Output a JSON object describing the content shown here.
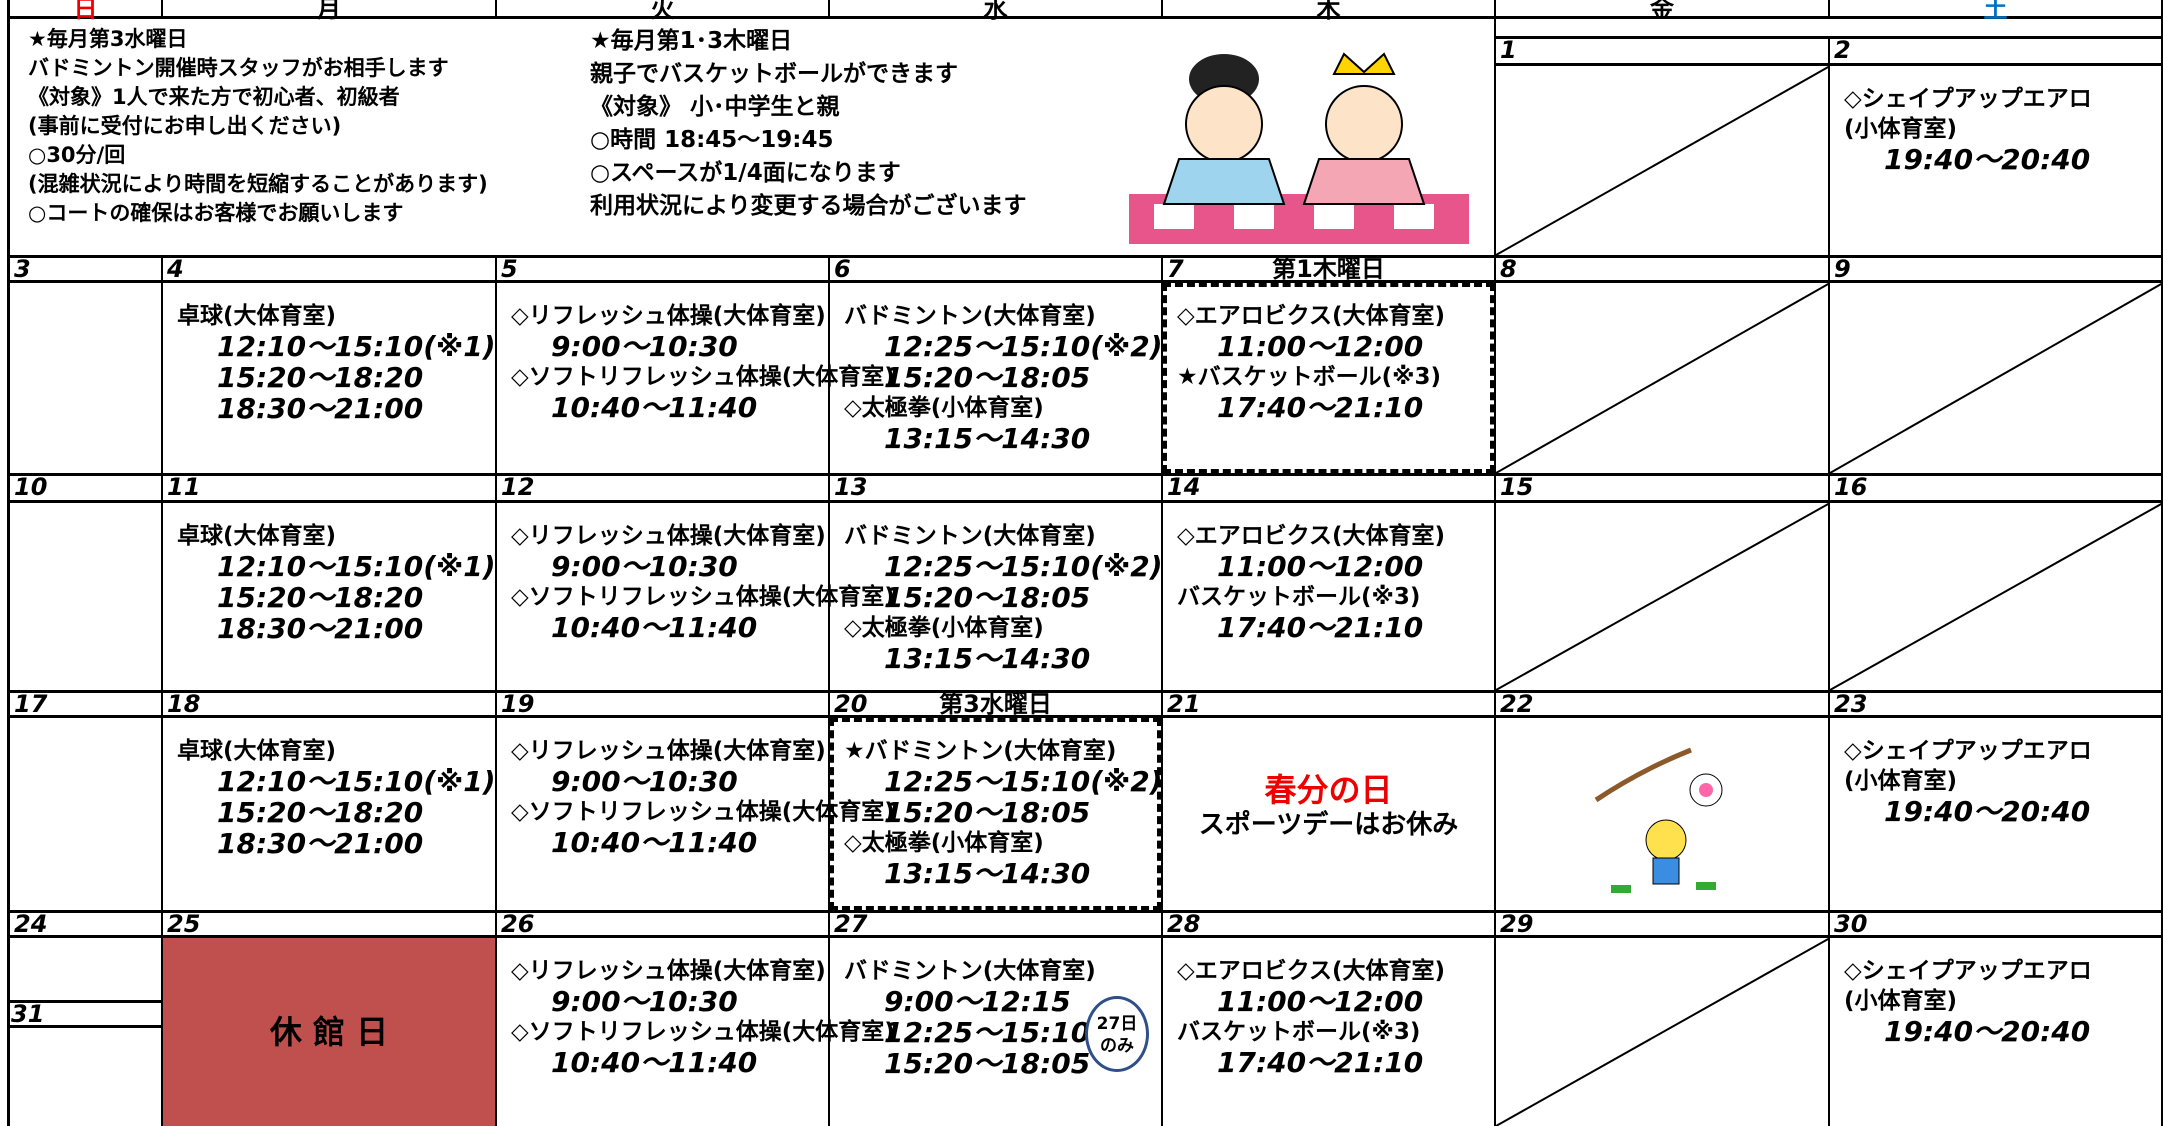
{
  "weekdays": [
    "日",
    "月",
    "火",
    "水",
    "木",
    "金",
    "土"
  ],
  "notes": {
    "left": [
      "★毎月第3水曜日",
      "バドミントン開催時スタッフがお相手します",
      "《対象》1人で来た方で初心者、初級者",
      "(事前に受付にお申し出ください)",
      "○30分/回",
      "(混雑状況により時間を短縮することがあります)",
      "○コートの確保はお客様でお願いします"
    ],
    "right": [
      "★毎月第1･3木曜日",
      "親子でバスケットボールができます",
      "《対象》 小･中学生と親",
      "○時間 18:45～19:45",
      "○スペースが1/4面になります",
      "利用状況により変更する場合がございます"
    ]
  },
  "weeks": [
    {
      "days": [
        {
          "date": "1",
          "crossed": true
        },
        {
          "date": "2",
          "lines": [
            "◇シェイプアップエアロ",
            "(小体育室)",
            "19:40～20:40"
          ]
        }
      ]
    },
    {
      "days": [
        {
          "date": "3"
        },
        {
          "date": "4",
          "lines": [
            "卓球(大体育室)",
            "12:10～15:10(※1)",
            "15:20～18:20",
            "18:30～21:00"
          ]
        },
        {
          "date": "5",
          "lines": [
            "◇リフレッシュ体操(大体育室)",
            "9:00～10:30",
            "◇ソフトリフレッシュ体操(大体育室)",
            "10:40～11:40"
          ]
        },
        {
          "date": "6",
          "lines": [
            "バドミントン(大体育室)",
            "12:25～15:10(※2)",
            "15:20～18:05",
            "◇太極拳(小体育室)",
            "13:15～14:30"
          ]
        },
        {
          "date": "7",
          "label": "第1木曜日",
          "lines": [
            "◇エアロビクス(大体育室)",
            "11:00～12:00",
            "★バスケットボール(※3)",
            "17:40～21:10"
          ]
        },
        {
          "date": "8",
          "crossed": true
        },
        {
          "date": "9",
          "crossed": true
        }
      ]
    },
    {
      "days": [
        {
          "date": "10"
        },
        {
          "date": "11",
          "lines": [
            "卓球(大体育室)",
            "12:10～15:10(※1)",
            "15:20～18:20",
            "18:30～21:00"
          ]
        },
        {
          "date": "12",
          "lines": [
            "◇リフレッシュ体操(大体育室)",
            "9:00～10:30",
            "◇ソフトリフレッシュ体操(大体育室)",
            "10:40～11:40"
          ]
        },
        {
          "date": "13",
          "lines": [
            "バドミントン(大体育室)",
            "12:25～15:10(※2)",
            "15:20～18:05",
            "◇太極拳(小体育室)",
            "13:15～14:30"
          ]
        },
        {
          "date": "14",
          "lines": [
            "◇エアロビクス(大体育室)",
            "11:00～12:00",
            "バスケットボール(※3)",
            "17:40～21:10"
          ]
        },
        {
          "date": "15",
          "crossed": true
        },
        {
          "date": "16",
          "crossed": true
        }
      ]
    },
    {
      "days": [
        {
          "date": "17"
        },
        {
          "date": "18",
          "lines": [
            "卓球(大体育室)",
            "12:10～15:10(※1)",
            "15:20～18:20",
            "18:30～21:00"
          ]
        },
        {
          "date": "19",
          "lines": [
            "◇リフレッシュ体操(大体育室)",
            "9:00～10:30",
            "◇ソフトリフレッシュ体操(大体育室)",
            "10:40～11:40"
          ]
        },
        {
          "date": "20",
          "label": "第3水曜日",
          "lines": [
            "★バドミントン(大体育室)",
            "12:25～15:10(※2)",
            "15:20～18:05",
            "◇太極拳(小体育室)",
            "13:15～14:30"
          ]
        },
        {
          "date": "21",
          "holiday": "春分の日",
          "lines": [
            "スポーツデーはお休み"
          ]
        },
        {
          "date": "22"
        },
        {
          "date": "23",
          "lines": [
            "◇シェイプアップエアロ",
            "(小体育室)",
            "19:40～20:40"
          ]
        }
      ]
    },
    {
      "days": [
        {
          "date": "24",
          "extra_date": "31"
        },
        {
          "date": "25",
          "closed": "休 館 日"
        },
        {
          "date": "26",
          "lines": [
            "◇リフレッシュ体操(大体育室)",
            "9:00～10:30",
            "◇ソフトリフレッシュ体操(大体育室)",
            "10:40～11:40"
          ]
        },
        {
          "date": "27",
          "lines": [
            "バドミントン(大体育室)",
            "9:00～12:15",
            "12:25～15:10",
            "15:20～18:05"
          ],
          "note": [
            "27日",
            "のみ"
          ]
        },
        {
          "date": "28",
          "lines": [
            "◇エアロビクス(大体育室)",
            "11:00～12:00",
            "バスケットボール(※3)",
            "17:40～21:10"
          ]
        },
        {
          "date": "29",
          "crossed": true
        },
        {
          "date": "30",
          "lines": [
            "◇シェイプアップエアロ",
            "(小体育室)",
            "19:40～20:40"
          ]
        }
      ]
    }
  ]
}
